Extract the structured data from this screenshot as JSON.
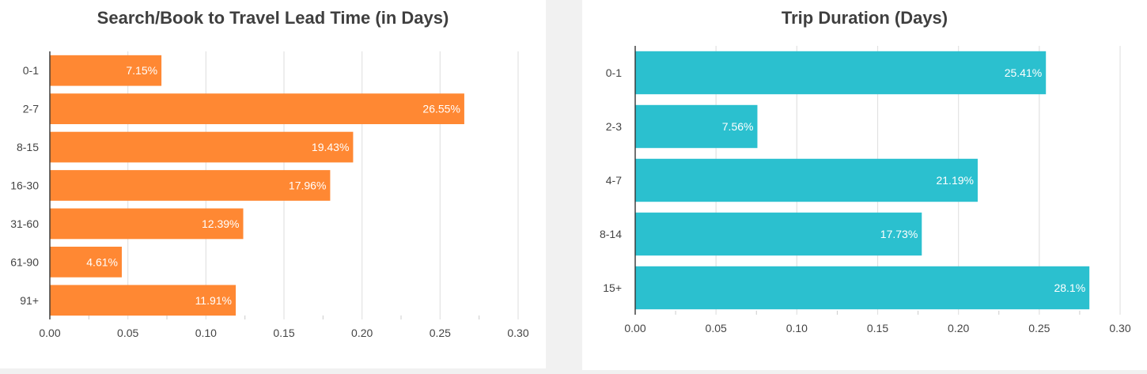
{
  "chart_data": [
    {
      "type": "bar",
      "orientation": "horizontal",
      "title": "Search/Book to Travel Lead Time (in Days)",
      "categories": [
        "0-1",
        "2-7",
        "8-15",
        "16-30",
        "31-60",
        "61-90",
        "91+"
      ],
      "values": [
        0.0715,
        0.2655,
        0.1943,
        0.1796,
        0.1239,
        0.0461,
        0.1191
      ],
      "data_labels": [
        "7.15%",
        "26.55%",
        "19.43%",
        "17.96%",
        "12.39%",
        "4.61%",
        "11.91%"
      ],
      "xlim": [
        0,
        0.3
      ],
      "x_ticks": [
        "0.00",
        "0.05",
        "0.10",
        "0.15",
        "0.20",
        "0.25",
        "0.30"
      ],
      "grid": true,
      "color": "#ff8833"
    },
    {
      "type": "bar",
      "orientation": "horizontal",
      "title": "Trip Duration (Days)",
      "categories": [
        "0-1",
        "2-3",
        "4-7",
        "8-14",
        "15+"
      ],
      "values": [
        0.2541,
        0.0756,
        0.2119,
        0.1773,
        0.281
      ],
      "data_labels": [
        "25.41%",
        "7.56%",
        "21.19%",
        "17.73%",
        "28.1%"
      ],
      "xlim": [
        0,
        0.3
      ],
      "x_ticks": [
        "0.00",
        "0.05",
        "0.10",
        "0.15",
        "0.20",
        "0.25",
        "0.30"
      ],
      "grid": true,
      "color": "#2bc0cf"
    }
  ]
}
